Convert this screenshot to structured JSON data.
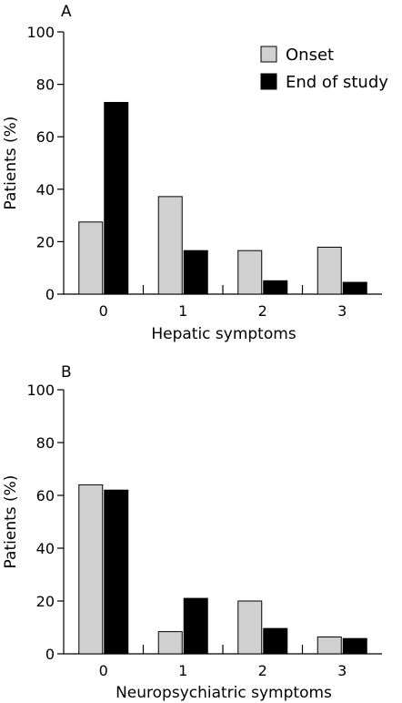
{
  "colors": {
    "onset": "#d0d0d0",
    "end": "#000000",
    "axis": "#000000"
  },
  "legend": {
    "onset_label": "Onset",
    "end_label": "End of study"
  },
  "chart_data": [
    {
      "type": "bar",
      "panel_label": "A",
      "categories": [
        "0",
        "1",
        "2",
        "3"
      ],
      "xlabel": "Hepatic symptoms",
      "ylabel": "Patients (%)",
      "ylim": [
        0,
        100
      ],
      "yticks": [
        "0",
        "20",
        "40",
        "60",
        "80",
        "100"
      ],
      "legend_position": "top-right",
      "series": [
        {
          "name": "Onset",
          "values": [
            27.5,
            37.2,
            16.6,
            17.9
          ]
        },
        {
          "name": "End of study",
          "values": [
            73.1,
            16.6,
            5.1,
            4.5
          ]
        }
      ]
    },
    {
      "type": "bar",
      "panel_label": "B",
      "categories": [
        "0",
        "1",
        "2",
        "3"
      ],
      "xlabel": "Neuropsychiatric symptoms",
      "ylabel": "Patients (%)",
      "ylim": [
        0,
        100
      ],
      "yticks": [
        "0",
        "20",
        "40",
        "60",
        "80",
        "100"
      ],
      "series": [
        {
          "name": "Onset",
          "values": [
            64.0,
            8.4,
            20.0,
            6.4
          ]
        },
        {
          "name": "End of study",
          "values": [
            62.0,
            21.0,
            9.6,
            5.8
          ]
        }
      ]
    }
  ]
}
